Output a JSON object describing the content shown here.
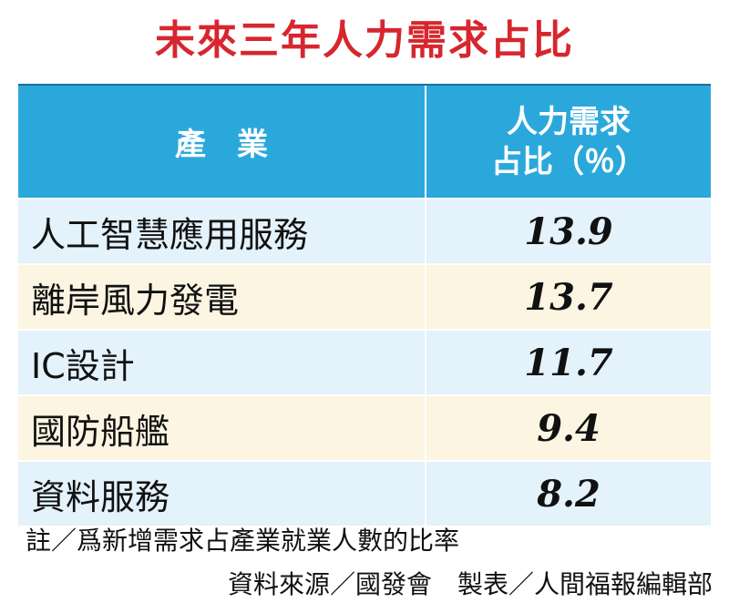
{
  "title": "未來三年人力需求占比",
  "table": {
    "header": [
      "產　業",
      [
        "人力需求",
        "占比（％）"
      ]
    ],
    "rows": [
      [
        "人工智慧應用服務",
        "13.9"
      ],
      [
        "離岸風力發電",
        "13.7"
      ],
      [
        "IC設計",
        "11.7"
      ],
      [
        "國防船艦",
        "9.4"
      ],
      [
        "資料服務",
        "8.2"
      ]
    ]
  },
  "notes": [
    "註／爲新增需求占產業就業人數的比率",
    "資料來源／國發會　製表／人間福報編輯部"
  ]
}
